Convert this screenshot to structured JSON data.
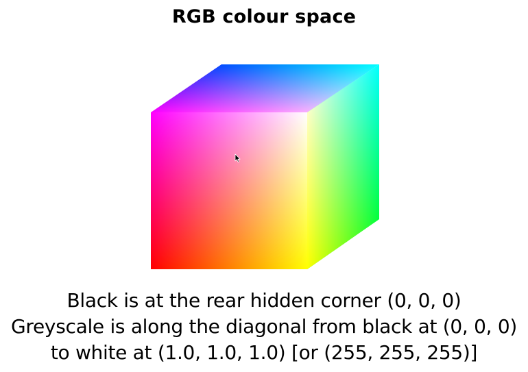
{
  "slide": {
    "title": "RGB colour space",
    "caption_lines": [
      "Black is at the rear hidden corner (0, 0, 0)",
      "Greyscale is along the diagonal from black at (0, 0, 0)",
      "to white at (1.0, 1.0, 1.0) [or (255, 255, 255)]"
    ]
  },
  "cube": {
    "front_face": {
      "top_left": "#ff00ff",
      "top_right": "#ffffff",
      "bottom_left": "#ff0000",
      "bottom_right": "#ffff00"
    },
    "top_face": {
      "back_left": "#0000ff",
      "back_right": "#00ffff",
      "front_left": "#ff00ff",
      "front_right": "#ffffff"
    },
    "side_face": {
      "top_back": "#00ffff",
      "bottom_back": "#00ff00",
      "top_front": "#ffffff",
      "bottom_front": "#ffff00"
    }
  },
  "cursor": {
    "icon": "arrow-pointer-icon"
  }
}
